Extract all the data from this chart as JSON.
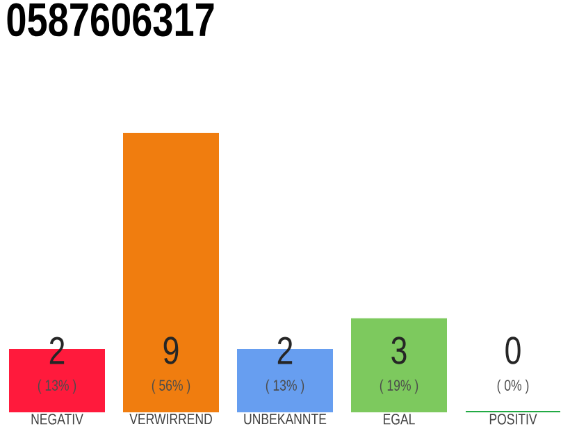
{
  "chart_data": {
    "type": "bar",
    "title": "0587606317",
    "categories": [
      "NEGATIV",
      "VERWIRREND",
      "UNBEKANNTE",
      "EGAL",
      "POSITIV"
    ],
    "values": [
      2,
      9,
      2,
      3,
      0
    ],
    "colors": [
      "#ff1a3c",
      "#f07d0f",
      "#679ef0",
      "#7dc95e",
      "#22aa44"
    ],
    "data_labels": true,
    "annotations": [
      "( 13% )",
      "( 56% )",
      "( 13% )",
      "( 19% )",
      "( 0% )"
    ]
  }
}
